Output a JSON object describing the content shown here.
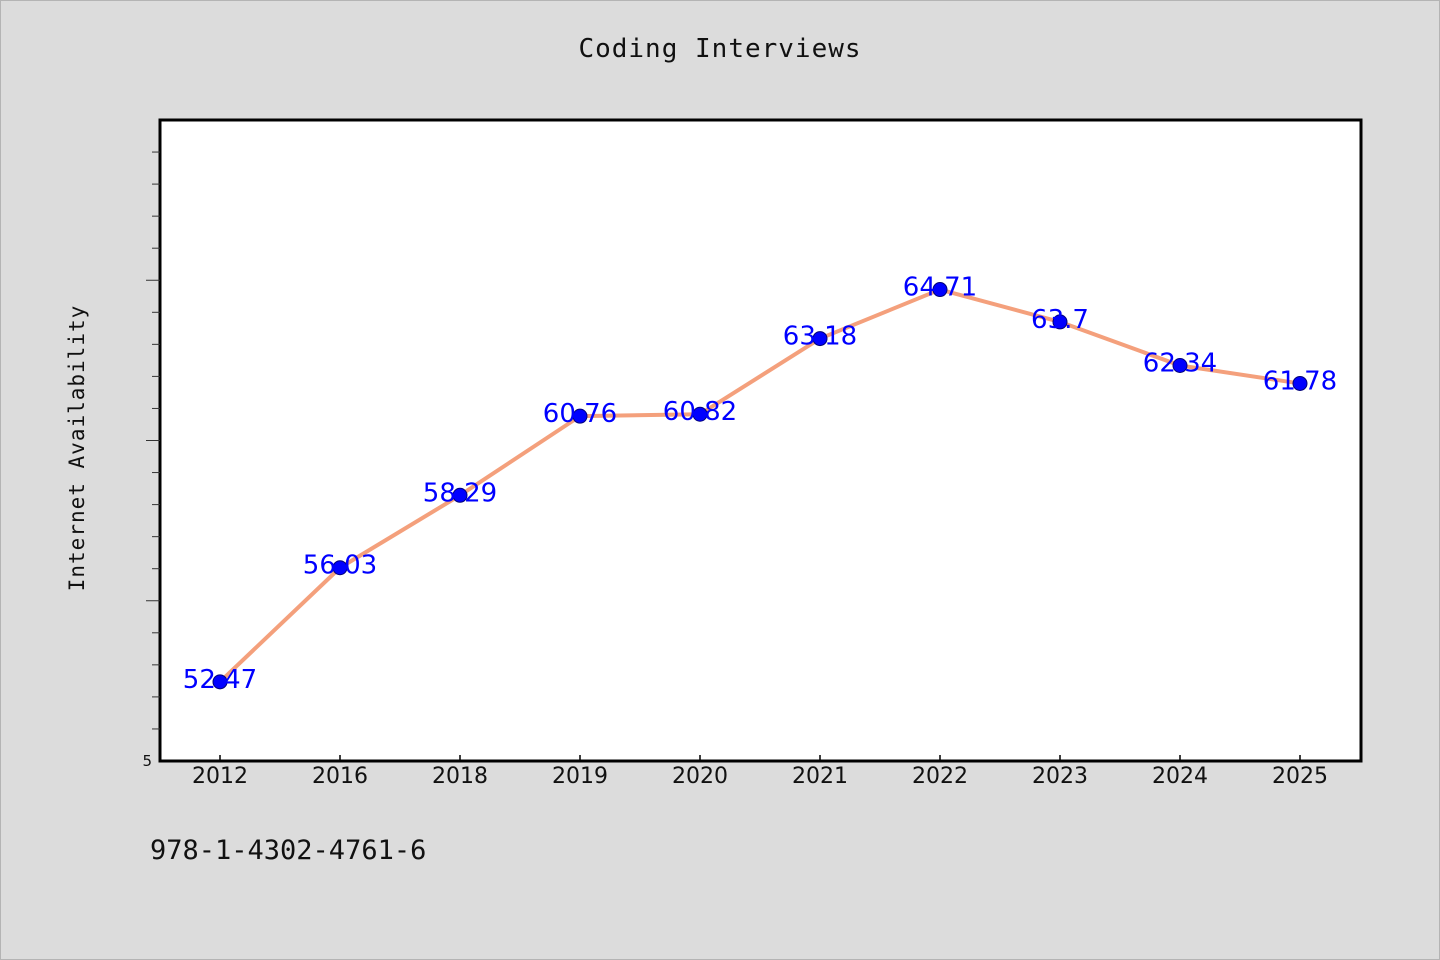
{
  "footer": {
    "code": "978-1-4302-4761-6"
  },
  "colors": {
    "background": "#dcdcdc",
    "plot_background": "#ffffff",
    "line": "#f4a07c",
    "marker": "#0000ff",
    "data_label": "#0000ff"
  },
  "chart_data": {
    "type": "line",
    "title": "Coding Interviews",
    "ylabel": "Internet Availability",
    "xlabel": "",
    "categories": [
      "2012",
      "2016",
      "2018",
      "2019",
      "2020",
      "2021",
      "2022",
      "2023",
      "2024",
      "2025"
    ],
    "series": [
      {
        "values": [
          52.47,
          56.03,
          58.29,
          60.76,
          60.82,
          63.18,
          64.71,
          63.7,
          62.34,
          61.78
        ]
      }
    ],
    "data_labels": [
      "52.47",
      "56.03",
      "58.29",
      "60.76",
      "60.82",
      "63.18",
      "64.71",
      "63.7",
      "62.34",
      "61.78"
    ],
    "y_tick_labels": [
      "5"
    ],
    "ylim": [
      50,
      70
    ],
    "grid": false,
    "legend": "none",
    "marker": "circle"
  }
}
